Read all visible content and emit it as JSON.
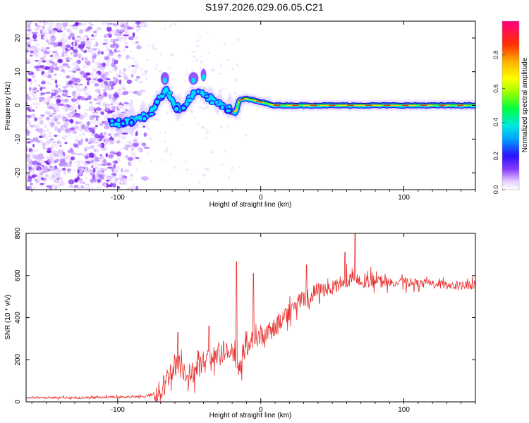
{
  "title": "S197.2026.029.06.05.C21",
  "colors": {
    "snr_line": "#e8312f",
    "axis": "#000000",
    "ridge_core": "#ff2020",
    "ridge_mid": "#00e0ff",
    "ridge_edge": "#3010ff",
    "noise": "#8a4bff"
  },
  "chart_data": [
    {
      "type": "heatmap",
      "name": "spectrogram",
      "xlabel": "Height of straight line (km)",
      "ylabel": "Frequency (Hz)",
      "xlim": [
        -164,
        150
      ],
      "ylim": [
        -25,
        25
      ],
      "x_ticks": [
        -100,
        0,
        100
      ],
      "x_tick_labels": [
        "-100",
        "0",
        "100"
      ],
      "y_ticks": [
        -20,
        -10,
        0,
        10,
        20
      ],
      "y_tick_labels": [
        "-20",
        "-10",
        "0",
        "10",
        "20"
      ],
      "ridge": {
        "description": "frequency of max spectral amplitude vs height",
        "x": [
          -104,
          -95,
          -85,
          -78,
          -72,
          -66,
          -60,
          -55,
          -50,
          -45,
          -40,
          -35,
          -30,
          -25,
          -20,
          -17,
          -15,
          -10,
          -5,
          0,
          10,
          20,
          40,
          60,
          80,
          100,
          120,
          150
        ],
        "y": [
          -5.5,
          -5,
          -4,
          -2.5,
          1,
          5,
          0,
          -1.5,
          2,
          4,
          3,
          2,
          1,
          0,
          -2,
          -1.5,
          1.5,
          2,
          1.5,
          1,
          0,
          0,
          0,
          0,
          0,
          0,
          0,
          0
        ]
      },
      "colorbar": {
        "label": "Normalized spectral amplitude",
        "range": [
          0.0,
          1.0
        ],
        "ticks": [
          0.0,
          0.2,
          0.4,
          0.6,
          0.8
        ],
        "tick_labels": [
          "0.0",
          "0.2",
          "0.4",
          "0.6",
          "0.8"
        ]
      }
    },
    {
      "type": "line",
      "name": "snr",
      "xlabel": "Height of straight line (km)",
      "ylabel": "SNR (10 * v/v)",
      "xlim": [
        -164,
        150
      ],
      "ylim": [
        0,
        800
      ],
      "x_ticks": [
        -100,
        0,
        100
      ],
      "x_tick_labels": [
        "-100",
        "0",
        "100"
      ],
      "y_ticks": [
        0,
        200,
        400,
        600,
        800
      ],
      "y_tick_labels": [
        "0",
        "200",
        "400",
        "600",
        "800"
      ],
      "envelope": {
        "x": [
          -164,
          -120,
          -80,
          -70,
          -65,
          -60,
          -55,
          -50,
          -45,
          -40,
          -35,
          -30,
          -25,
          -20,
          -15,
          -10,
          -5,
          0,
          5,
          10,
          15,
          20,
          25,
          30,
          35,
          40,
          50,
          60,
          65,
          70,
          80,
          90,
          100,
          110,
          120,
          130,
          140,
          150
        ],
        "y": [
          20,
          20,
          25,
          45,
          120,
          180,
          160,
          130,
          150,
          190,
          200,
          220,
          240,
          230,
          170,
          250,
          300,
          310,
          330,
          350,
          400,
          430,
          470,
          480,
          500,
          530,
          540,
          570,
          590,
          560,
          580,
          565,
          570,
          560,
          560,
          555,
          550,
          555
        ]
      },
      "peaks": [
        {
          "x": 66,
          "y": 805
        },
        {
          "x": -17,
          "y": 665
        },
        {
          "x": 59,
          "y": 710
        },
        {
          "x": -58,
          "y": 330
        },
        {
          "x": -36,
          "y": 360
        },
        {
          "x": -5,
          "y": 610
        },
        {
          "x": 32,
          "y": 650
        }
      ]
    }
  ]
}
